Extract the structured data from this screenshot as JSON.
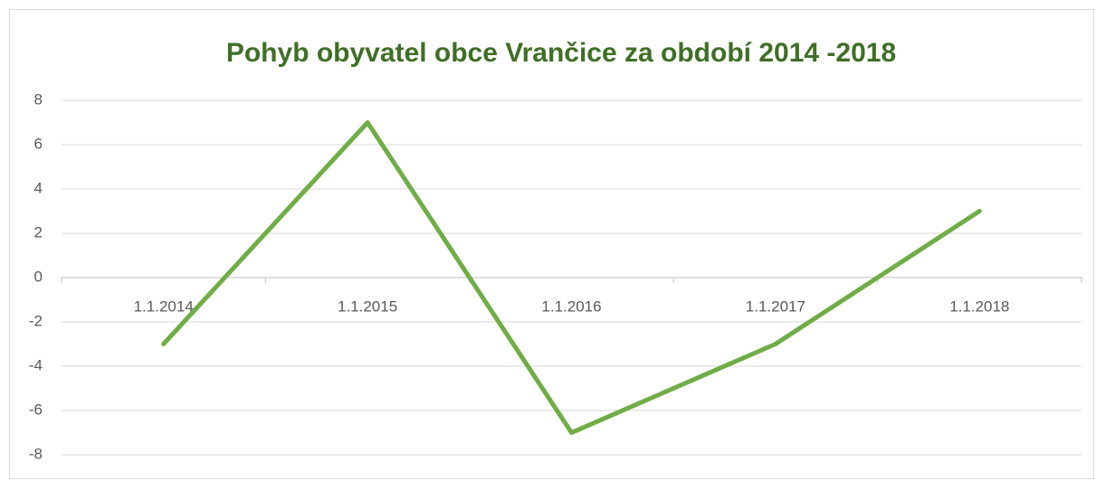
{
  "chart_data": {
    "type": "line",
    "title": "Pohyb obyvatel obce Vrančice za období 2014 -2018",
    "categories": [
      "1.1.2014",
      "1.1.2015",
      "1.1.2016",
      "1.1.2017",
      "1.1.2018"
    ],
    "series": [
      {
        "name": "Pohyb obyvatel",
        "color": "#70ad47",
        "values": [
          -3,
          7,
          -7,
          -3,
          3
        ]
      }
    ],
    "ylim": [
      -8,
      8
    ],
    "yticks": [
      -8,
      -6,
      -4,
      -2,
      0,
      2,
      4,
      6,
      8
    ],
    "grid": true
  }
}
